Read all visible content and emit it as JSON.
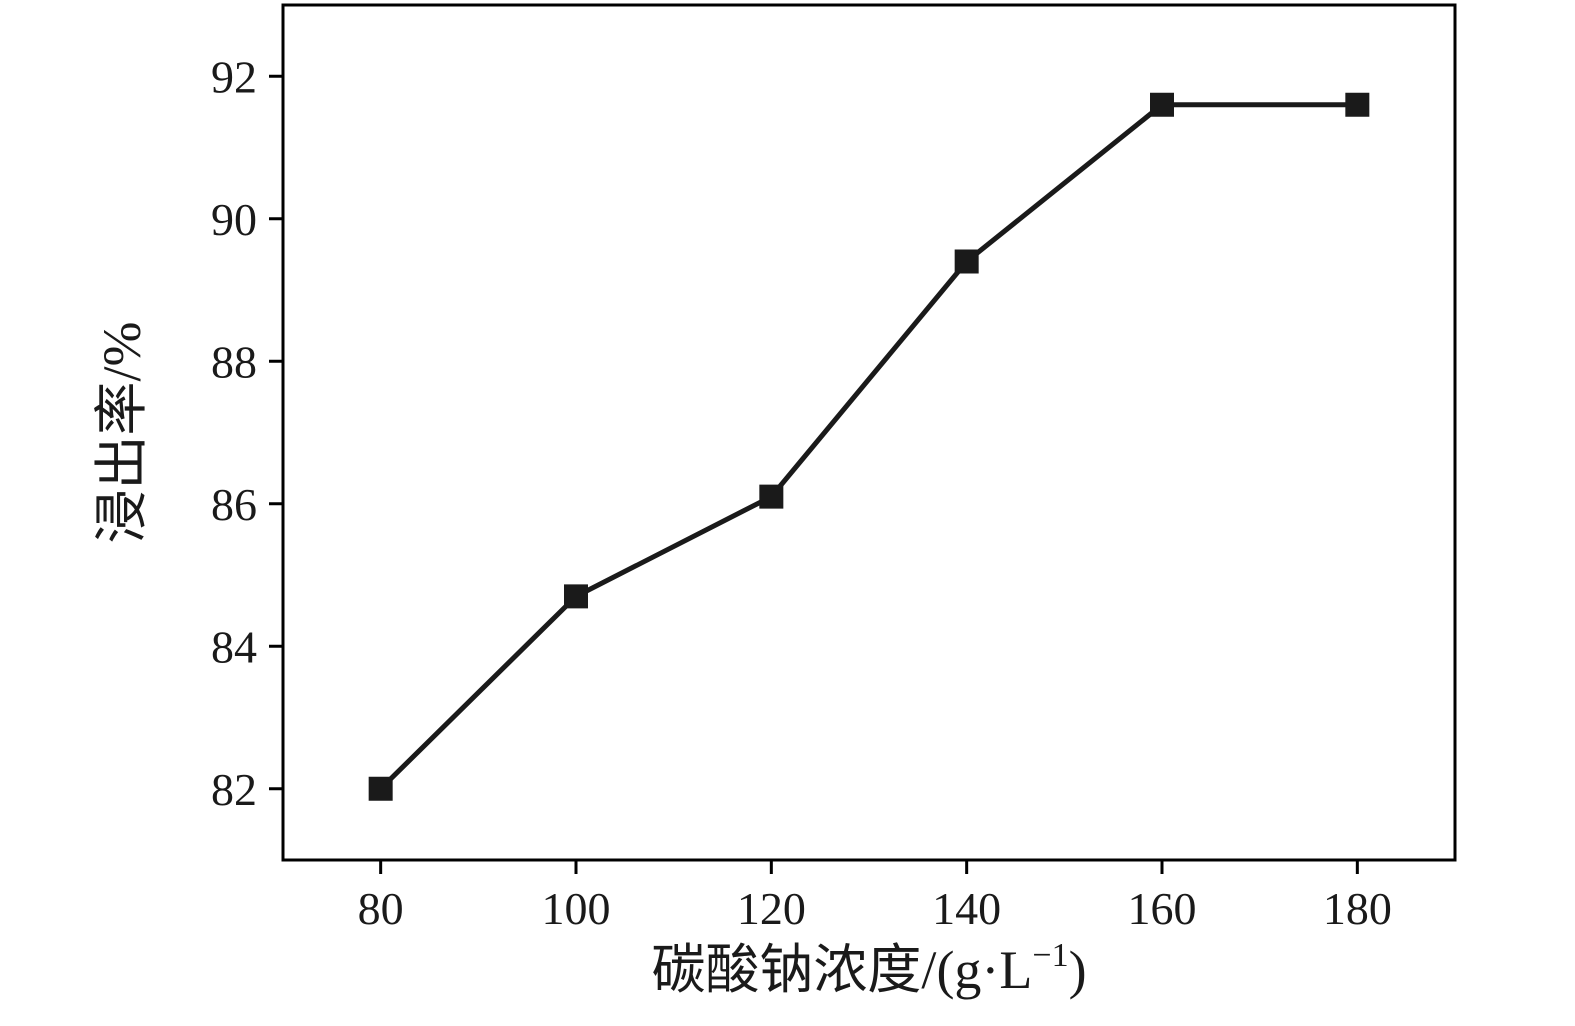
{
  "chart_data": {
    "type": "line",
    "x": [
      80,
      100,
      120,
      140,
      160,
      180
    ],
    "values": [
      82.0,
      84.7,
      86.1,
      89.4,
      91.6,
      91.6
    ],
    "series_name": "浸出率",
    "title": "",
    "xlabel": "碳酸钠浓度/(g·L⁻¹)",
    "xlabel_main": "碳酸钠浓度/(g·L",
    "xlabel_sup": "−1",
    "xlabel_close": ")",
    "ylabel": "浸出率/%",
    "xlim": [
      70,
      190
    ],
    "ylim": [
      81,
      93
    ],
    "x_ticks": [
      80,
      100,
      120,
      140,
      160,
      180
    ],
    "y_ticks": [
      82,
      84,
      86,
      88,
      90,
      92
    ],
    "marker": "square",
    "marker_size": 24,
    "line_width": 5,
    "line_color": "#1a1a1a",
    "axis_color": "#000000",
    "background": "#ffffff",
    "grid": false,
    "legend": false
  }
}
